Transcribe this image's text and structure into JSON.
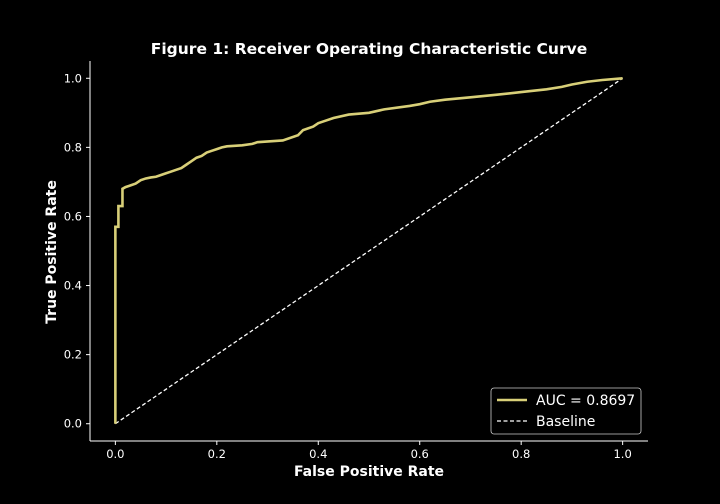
{
  "chart_data": {
    "type": "line",
    "title": "Figure 1: Receiver Operating Characteristic Curve",
    "xlabel": "False Positive Rate",
    "ylabel": "True Positive Rate",
    "xlim": [
      -0.05,
      1.05
    ],
    "ylim": [
      -0.05,
      1.05
    ],
    "xticks": [
      "0.0",
      "0.2",
      "0.4",
      "0.6",
      "0.8",
      "1.0"
    ],
    "yticks": [
      "0.0",
      "0.2",
      "0.4",
      "0.6",
      "0.8",
      "1.0"
    ],
    "grid": false,
    "legend_position": "bottom-right",
    "colors": {
      "background": "#000000",
      "roc": "#d8cf78",
      "baseline": "#ffffff",
      "axis": "#ffffff"
    },
    "series": [
      {
        "name": "AUC = 0.8697",
        "style": "solid",
        "x": [
          0.0,
          0.0,
          0.006,
          0.006,
          0.014,
          0.014,
          0.02,
          0.03,
          0.04,
          0.05,
          0.06,
          0.07,
          0.08,
          0.09,
          0.1,
          0.11,
          0.12,
          0.13,
          0.14,
          0.15,
          0.16,
          0.17,
          0.18,
          0.19,
          0.2,
          0.21,
          0.22,
          0.25,
          0.27,
          0.28,
          0.33,
          0.36,
          0.37,
          0.39,
          0.4,
          0.41,
          0.43,
          0.46,
          0.5,
          0.53,
          0.58,
          0.6,
          0.62,
          0.65,
          0.7,
          0.75,
          0.8,
          0.85,
          0.88,
          0.9,
          0.93,
          0.96,
          1.0
        ],
        "y": [
          0.0,
          0.57,
          0.57,
          0.63,
          0.63,
          0.68,
          0.685,
          0.69,
          0.695,
          0.705,
          0.71,
          0.713,
          0.715,
          0.72,
          0.725,
          0.73,
          0.735,
          0.74,
          0.75,
          0.76,
          0.77,
          0.775,
          0.785,
          0.79,
          0.795,
          0.8,
          0.803,
          0.806,
          0.81,
          0.815,
          0.82,
          0.835,
          0.85,
          0.86,
          0.87,
          0.875,
          0.885,
          0.895,
          0.9,
          0.91,
          0.92,
          0.925,
          0.932,
          0.938,
          0.945,
          0.952,
          0.96,
          0.968,
          0.975,
          0.982,
          0.99,
          0.995,
          1.0
        ]
      },
      {
        "name": "Baseline",
        "style": "dashed",
        "x": [
          0.0,
          1.0
        ],
        "y": [
          0.0,
          1.0
        ]
      }
    ]
  }
}
